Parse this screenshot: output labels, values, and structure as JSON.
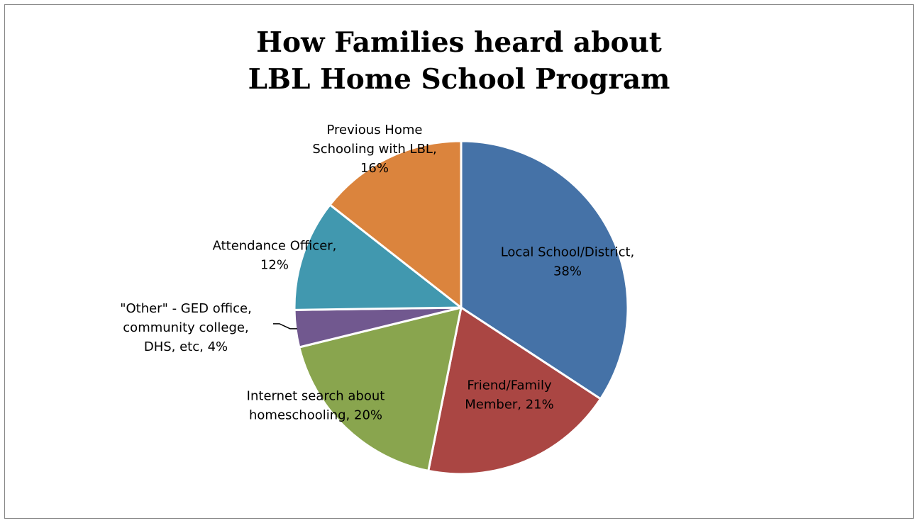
{
  "chart_data": {
    "type": "pie",
    "title_lines": [
      "How Families heard about",
      "LBL Home School Program"
    ],
    "legend": "none",
    "slices": [
      {
        "label_lines": [
          "Local School/District,",
          "38%"
        ],
        "value": 38,
        "color": "#4572A7"
      },
      {
        "label_lines": [
          "Friend/Family",
          "Member, 21%"
        ],
        "value": 21,
        "color": "#AA4643"
      },
      {
        "label_lines": [
          "Internet search about",
          "homeschooling, 20%"
        ],
        "value": 20,
        "color": "#89A54E"
      },
      {
        "label_lines": [
          "\"Other\" - GED office,",
          "community college,",
          "DHS, etc, 4%"
        ],
        "value": 4,
        "color": "#71588F"
      },
      {
        "label_lines": [
          "Attendance Officer,",
          "12%"
        ],
        "value": 12,
        "color": "#4198AF"
      },
      {
        "label_lines": [
          "Previous Home",
          "Schooling with LBL,",
          "16%"
        ],
        "value": 16,
        "color": "#DB843D"
      }
    ]
  }
}
